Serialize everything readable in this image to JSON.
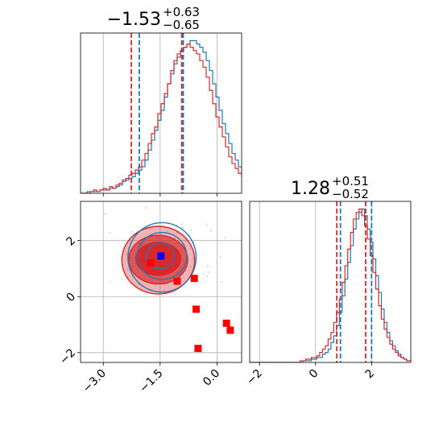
{
  "colors": {
    "blue": "#1f77b4",
    "red": "#d62728",
    "marker_red": "#ff0000",
    "marker_blue": "#0000ff",
    "grid": "#b0b0b0"
  },
  "chart_data": [
    {
      "type": "histogram",
      "panel": "top-left",
      "title": "−1.53",
      "title_sup": "+0.63",
      "title_sub": "−0.65",
      "xlim": [
        -3.6,
        0.65
      ],
      "bins_start": -3.6,
      "bin_width": 0.085,
      "series": [
        {
          "name": "",
          "color": "blue",
          "counts": [
            0,
            0,
            1,
            1,
            1,
            1,
            2,
            2,
            2,
            3,
            3,
            4,
            5,
            7,
            8,
            9,
            10,
            12,
            14,
            16,
            20,
            26,
            32,
            38,
            44,
            50,
            58,
            66,
            72,
            78,
            82,
            86,
            88,
            90,
            92,
            92,
            90,
            88,
            85,
            80,
            74,
            66,
            58,
            50,
            42,
            36,
            30,
            24,
            20,
            16,
            13,
            10,
            8,
            6,
            5,
            4,
            3,
            2,
            1,
            1
          ]
        },
        {
          "name": "",
          "color": "red",
          "counts": [
            0,
            0,
            0,
            1,
            2,
            1,
            2,
            3,
            2,
            4,
            3,
            5,
            6,
            8,
            9,
            11,
            12,
            14,
            16,
            20,
            24,
            30,
            36,
            40,
            48,
            54,
            60,
            66,
            74,
            80,
            84,
            86,
            88,
            90,
            88,
            86,
            84,
            80,
            76,
            70,
            62,
            54,
            46,
            40,
            34,
            28,
            22,
            18,
            15,
            12,
            10,
            8,
            6,
            5,
            4,
            3,
            3,
            2,
            1,
            1
          ]
        }
      ],
      "vlines": [
        {
          "x": -2.26,
          "color": "red"
        },
        {
          "x": -2.05,
          "color": "blue"
        },
        {
          "x": -0.93,
          "color": "red"
        },
        {
          "x": -0.89,
          "color": "blue"
        }
      ],
      "xticks": [
        -3.0,
        -1.5,
        0.0
      ],
      "grid": true
    },
    {
      "type": "contour",
      "panel": "bottom-left",
      "xlim": [
        -3.6,
        0.65
      ],
      "ylim": [
        -2.35,
        3.4
      ],
      "xticks": [
        -3.0,
        -1.5,
        0.0
      ],
      "xtick_labels": [
        "−3.0",
        "−1.5",
        "0.0"
      ],
      "yticks": [
        -2,
        0,
        2
      ],
      "ytick_labels": [
        "−2",
        "0",
        "2"
      ],
      "filled_contours": [
        {
          "cx": -1.55,
          "cy": 1.3,
          "rx": 1.55,
          "ry": 1.95,
          "color": "red",
          "level": 0.35
        },
        {
          "cx": -1.55,
          "cy": 1.32,
          "rx": 1.25,
          "ry": 1.4,
          "color": "red",
          "level": 0.65
        },
        {
          "cx": -1.55,
          "cy": 1.35,
          "rx": 0.95,
          "ry": 0.95,
          "color": "red",
          "level": 0.95
        }
      ],
      "line_contours": [
        {
          "cx": -1.45,
          "cy": 1.4,
          "rx": 1.45,
          "ry": 2.0,
          "color": "blue"
        },
        {
          "cx": -1.45,
          "cy": 1.45,
          "rx": 1.05,
          "ry": 1.35,
          "color": "blue"
        },
        {
          "cx": -1.5,
          "cy": 1.45,
          "rx": 0.6,
          "ry": 0.75,
          "color": "blue"
        }
      ],
      "markers": [
        {
          "x": -1.48,
          "y": 1.45,
          "color": "marker_blue"
        },
        {
          "x": -1.75,
          "y": 1.2,
          "color": "marker_red"
        },
        {
          "x": -1.05,
          "y": 0.55,
          "color": "marker_red"
        },
        {
          "x": -0.6,
          "y": 0.65,
          "color": "marker_red"
        },
        {
          "x": -0.55,
          "y": -0.45,
          "color": "marker_red"
        },
        {
          "x": 0.25,
          "y": -0.95,
          "color": "marker_red"
        },
        {
          "x": 0.35,
          "y": -1.2,
          "color": "marker_red"
        },
        {
          "x": -0.5,
          "y": -1.85,
          "color": "marker_red"
        }
      ],
      "grid": true
    },
    {
      "type": "histogram",
      "panel": "bottom-right",
      "title": "1.28",
      "title_sup": "+0.51",
      "title_sub": "−0.52",
      "xlim": [
        -2.35,
        3.4
      ],
      "bins_start": -2.35,
      "bin_width": 0.1,
      "series": [
        {
          "name": "",
          "color": "blue",
          "counts": [
            0,
            0,
            0,
            0,
            0,
            0,
            0,
            0,
            0,
            0,
            0,
            0,
            0,
            0,
            0,
            0,
            0,
            0,
            0,
            1,
            1,
            1,
            2,
            2,
            3,
            3,
            5,
            6,
            8,
            12,
            16,
            22,
            30,
            40,
            50,
            60,
            70,
            80,
            86,
            90,
            92,
            88,
            80,
            72,
            62,
            52,
            42,
            32,
            24,
            18,
            13,
            10,
            7,
            5,
            3,
            2,
            1,
            1,
            0,
            0
          ]
        },
        {
          "name": "",
          "color": "red",
          "counts": [
            0,
            0,
            0,
            0,
            0,
            0,
            0,
            0,
            0,
            0,
            0,
            0,
            0,
            0,
            0,
            0,
            0,
            0,
            1,
            1,
            2,
            2,
            3,
            3,
            4,
            6,
            8,
            10,
            14,
            18,
            24,
            30,
            38,
            48,
            58,
            68,
            78,
            86,
            90,
            92,
            88,
            82,
            74,
            64,
            54,
            44,
            34,
            26,
            20,
            15,
            11,
            8,
            6,
            4,
            3,
            2,
            1,
            1,
            0,
            0
          ]
        }
      ],
      "vlines": [
        {
          "x": 0.76,
          "color": "red"
        },
        {
          "x": 0.89,
          "color": "blue"
        },
        {
          "x": 1.79,
          "color": "red"
        },
        {
          "x": 2.0,
          "color": "blue"
        }
      ],
      "xticks": [
        -2,
        0,
        2
      ],
      "xtick_labels": [
        "−2",
        "0",
        "2"
      ],
      "grid": true
    }
  ]
}
